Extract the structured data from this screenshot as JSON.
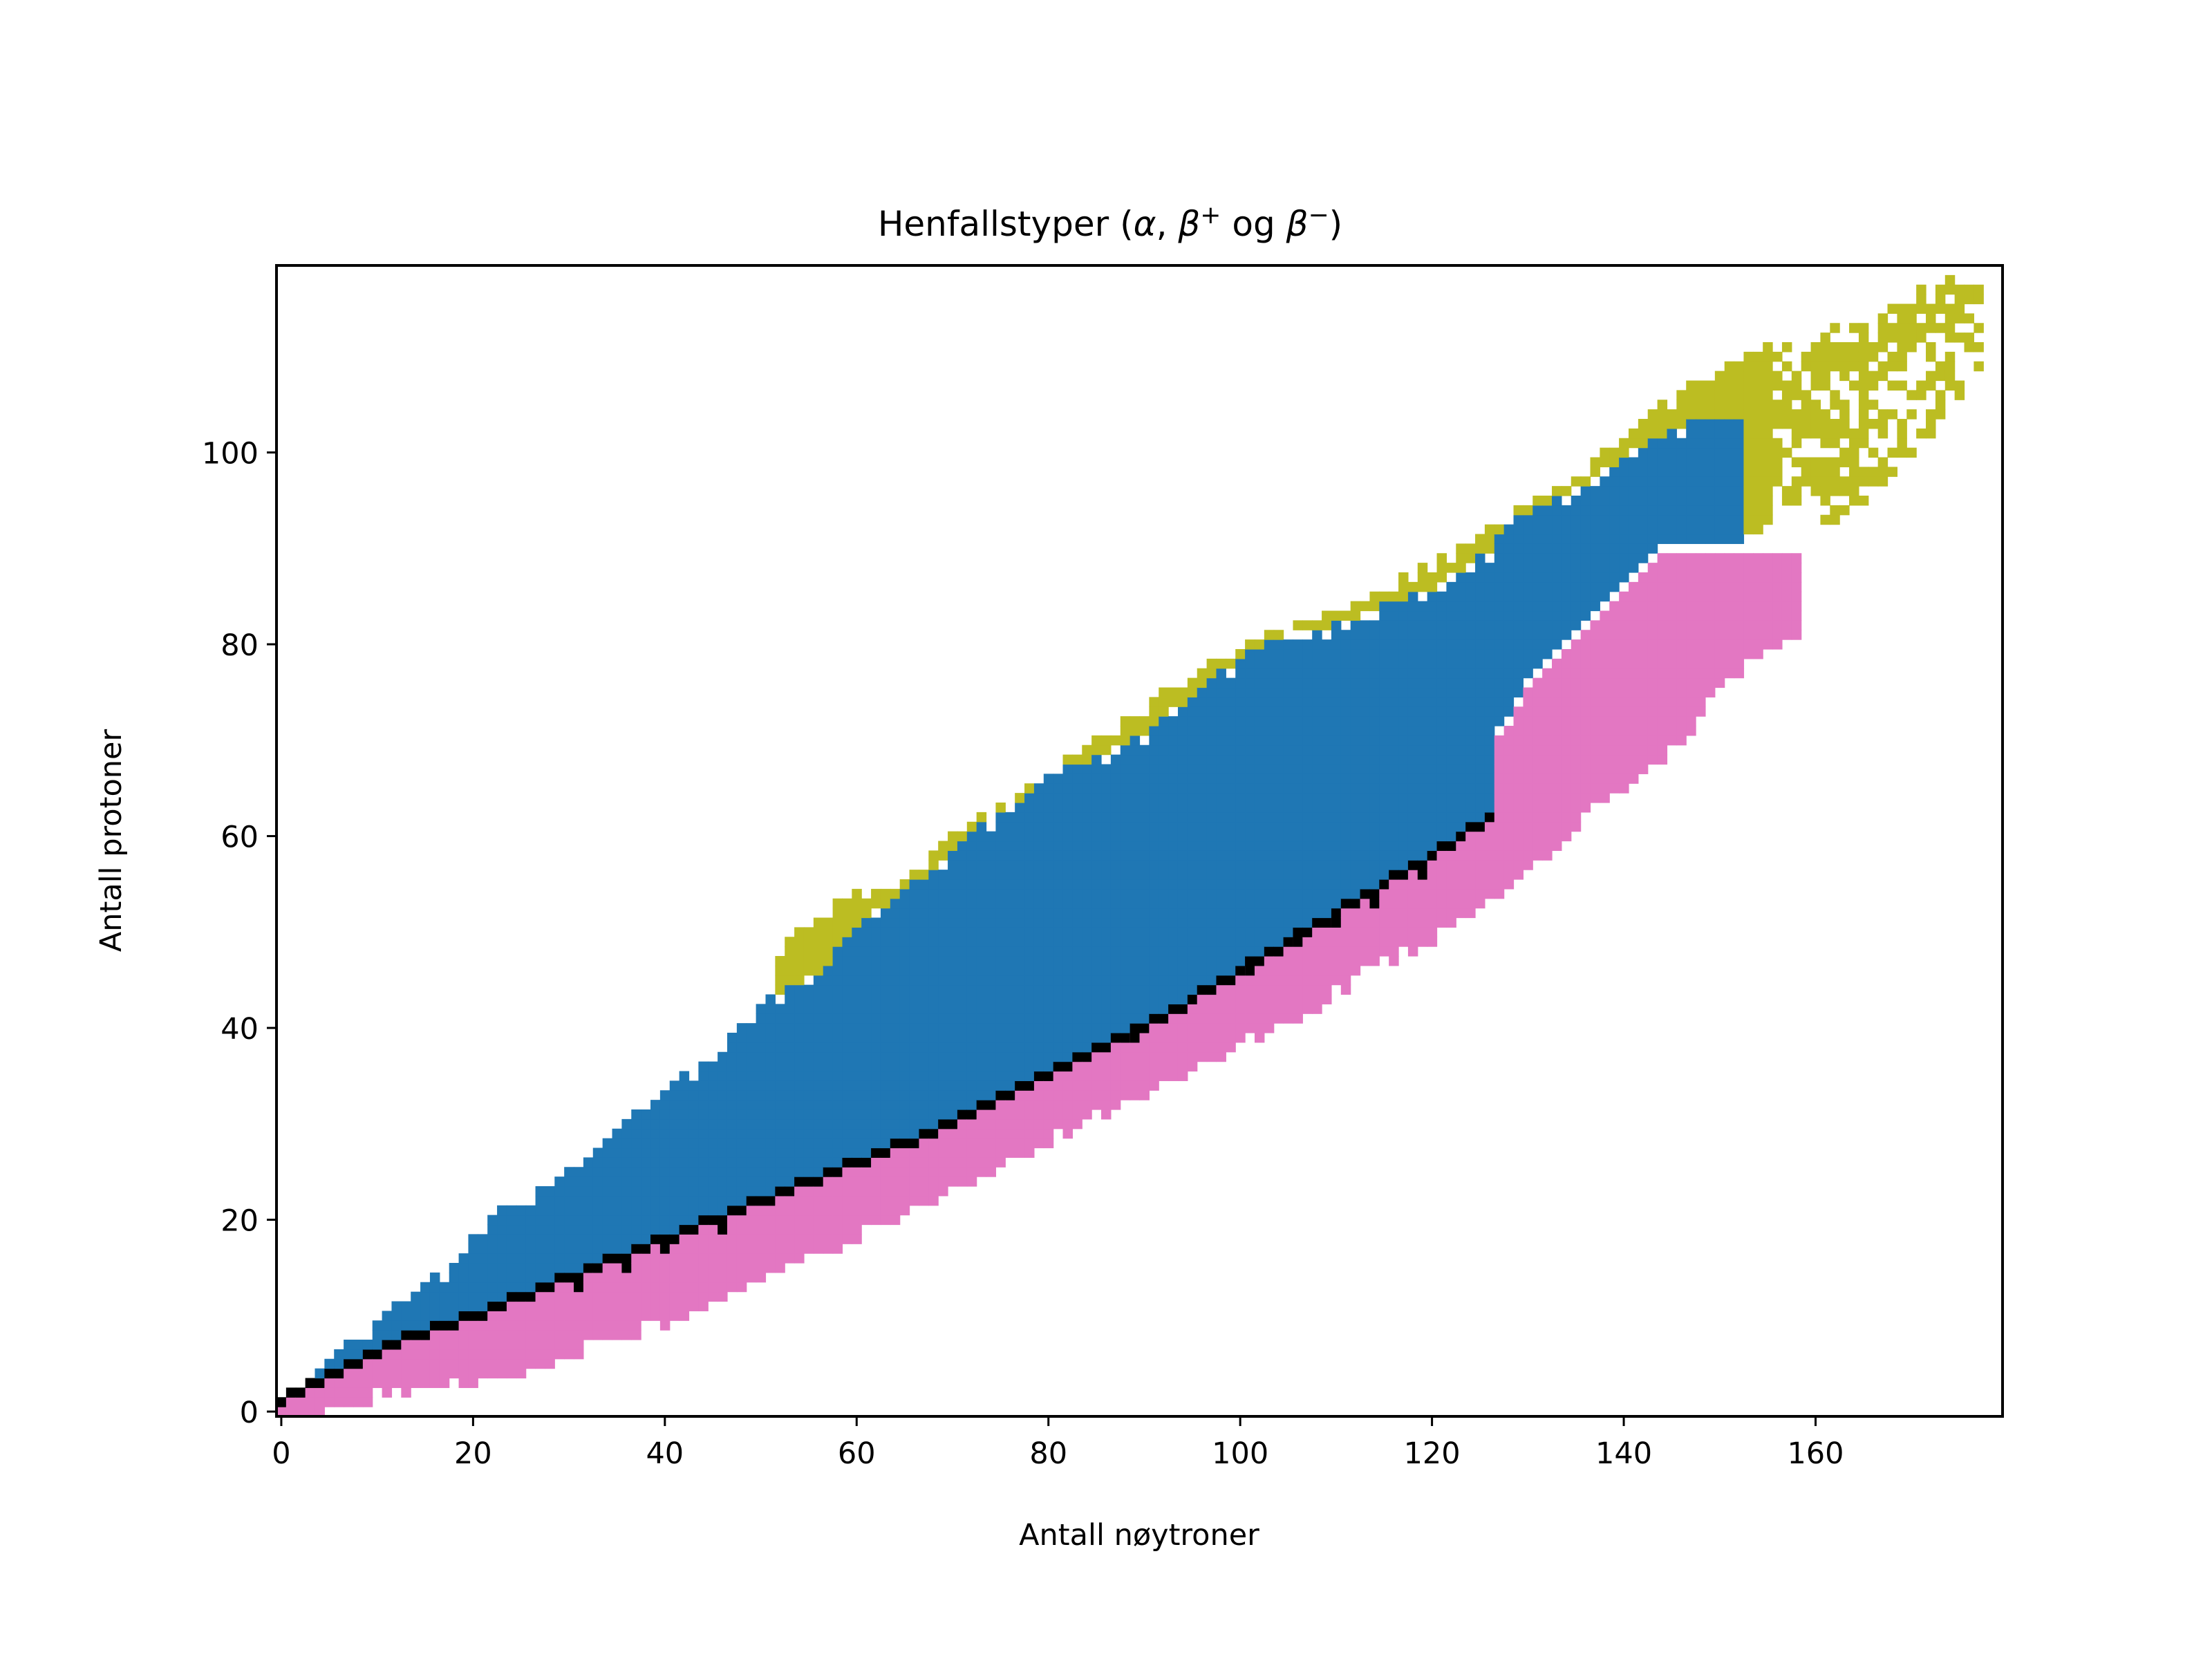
{
  "chart_data": {
    "type": "heatmap",
    "title_parts": [
      "Henfallstyper (",
      "α",
      ", ",
      "β",
      "+",
      " og  ",
      "β",
      "−",
      ")"
    ],
    "xlabel": "Antall nøytroner",
    "ylabel": "Antall protoner",
    "xlim": [
      -0.5,
      179.5
    ],
    "ylim": [
      -0.5,
      119.5
    ],
    "xticks": [
      0,
      20,
      40,
      60,
      80,
      100,
      120,
      140,
      160
    ],
    "yticks": [
      0,
      20,
      40,
      60,
      80,
      100
    ],
    "grid": false,
    "legend": "none",
    "colors": {
      "alpha": "#bcbd22",
      "beta_plus": "#1f77b4",
      "beta_minus": "#e377c2",
      "stable": "#000000"
    },
    "bands": {
      "stable_line": [
        [
          0,
          1
        ],
        [
          2,
          2
        ],
        [
          4,
          3
        ],
        [
          6,
          4
        ],
        [
          8,
          5
        ],
        [
          10,
          6
        ],
        [
          14,
          8
        ],
        [
          20,
          10
        ],
        [
          30,
          14
        ],
        [
          40,
          18
        ],
        [
          50,
          22
        ],
        [
          60,
          26
        ],
        [
          70,
          30
        ],
        [
          80,
          35
        ],
        [
          90,
          40
        ],
        [
          100,
          46
        ],
        [
          110,
          52
        ],
        [
          120,
          58
        ],
        [
          126,
          62
        ],
        [
          124,
          67
        ],
        [
          128,
          72
        ],
        [
          130,
          76
        ],
        [
          134,
          80
        ],
        [
          138,
          84
        ],
        [
          140,
          86
        ],
        [
          142,
          88
        ],
        [
          144,
          90
        ]
      ],
      "beta_plus_top": [
        [
          2,
          1
        ],
        [
          4,
          4
        ],
        [
          6,
          6
        ],
        [
          10,
          9
        ],
        [
          14,
          12
        ],
        [
          18,
          15
        ],
        [
          22,
          20
        ],
        [
          26,
          22
        ],
        [
          30,
          25
        ],
        [
          34,
          28
        ],
        [
          40,
          33
        ],
        [
          44,
          36
        ],
        [
          48,
          40
        ],
        [
          50,
          42
        ],
        [
          56,
          45
        ],
        [
          60,
          50
        ],
        [
          64,
          53
        ],
        [
          68,
          56
        ],
        [
          72,
          60
        ],
        [
          76,
          62
        ],
        [
          80,
          66
        ],
        [
          86,
          68
        ],
        [
          90,
          70
        ],
        [
          96,
          75
        ],
        [
          100,
          78
        ],
        [
          104,
          80
        ],
        [
          108,
          81
        ],
        [
          112,
          82
        ],
        [
          116,
          84
        ],
        [
          120,
          85
        ],
        [
          124,
          88
        ],
        [
          126,
          89
        ],
        [
          128,
          92
        ],
        [
          134,
          95
        ],
        [
          136,
          96
        ],
        [
          140,
          99
        ],
        [
          144,
          101
        ],
        [
          148,
          103
        ],
        [
          152,
          103
        ]
      ],
      "beta_minus_bottom": [
        [
          1,
          -0.5
        ],
        [
          4,
          0
        ],
        [
          8,
          1
        ],
        [
          12,
          2
        ],
        [
          18,
          3
        ],
        [
          24,
          4
        ],
        [
          30,
          6
        ],
        [
          36,
          8
        ],
        [
          42,
          10
        ],
        [
          48,
          13
        ],
        [
          54,
          16
        ],
        [
          60,
          18
        ],
        [
          66,
          21
        ],
        [
          72,
          24
        ],
        [
          78,
          27
        ],
        [
          84,
          30
        ],
        [
          90,
          33
        ],
        [
          96,
          36
        ],
        [
          100,
          38
        ],
        [
          106,
          41
        ],
        [
          112,
          45
        ],
        [
          118,
          48
        ],
        [
          124,
          52
        ],
        [
          128,
          55
        ],
        [
          134,
          60
        ],
        [
          140,
          65
        ],
        [
          146,
          70
        ],
        [
          150,
          75
        ],
        [
          156,
          80
        ],
        [
          160,
          82
        ],
        [
          166,
          86
        ],
        [
          170,
          90
        ],
        [
          176,
          97
        ]
      ],
      "alpha_top": [
        [
          52,
          48
        ],
        [
          56,
          51
        ],
        [
          58,
          53
        ],
        [
          64,
          55
        ],
        [
          68,
          58
        ],
        [
          72,
          61
        ],
        [
          76,
          63
        ],
        [
          80,
          66
        ],
        [
          82,
          68
        ],
        [
          86,
          70
        ],
        [
          90,
          73
        ],
        [
          94,
          76
        ],
        [
          98,
          78
        ],
        [
          104,
          81
        ],
        [
          108,
          82
        ],
        [
          112,
          84
        ],
        [
          118,
          87
        ],
        [
          124,
          90
        ],
        [
          128,
          93
        ],
        [
          134,
          96
        ],
        [
          138,
          100
        ],
        [
          142,
          103
        ],
        [
          146,
          106
        ],
        [
          150,
          108
        ],
        [
          154,
          110
        ],
        [
          158,
          112
        ],
        [
          160,
          112
        ],
        [
          166,
          114
        ],
        [
          170,
          116
        ],
        [
          174,
          118
        ],
        [
          176,
          118
        ]
      ]
    }
  }
}
